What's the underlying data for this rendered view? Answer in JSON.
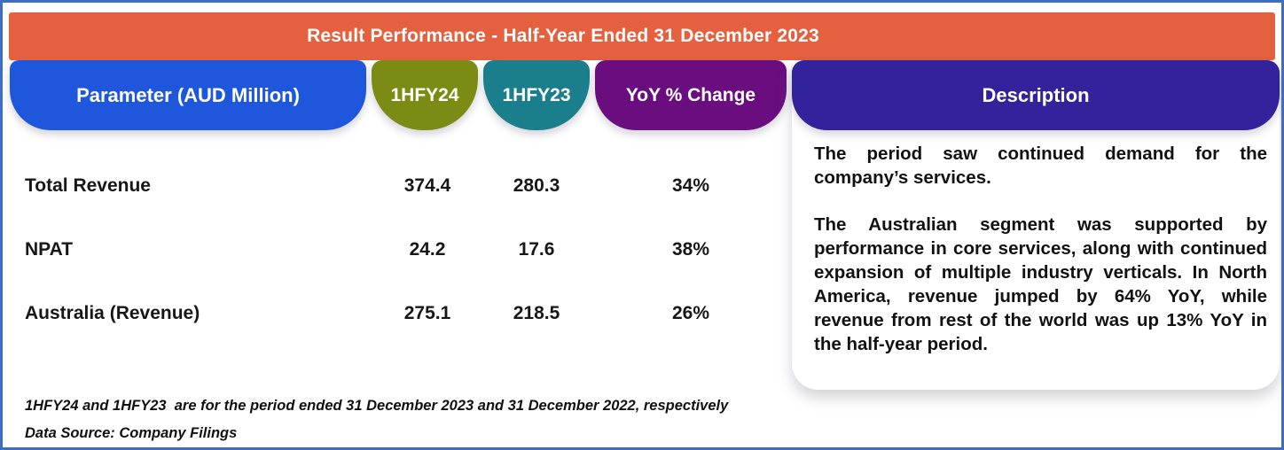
{
  "header": {
    "title": "Result Performance - Half-Year Ended 31 December 2023",
    "background": "#E5603E",
    "text_color": "#FFFFFF"
  },
  "columns": [
    {
      "id": "parameter",
      "label": "Parameter (AUD Million)",
      "color": "#1E56DC"
    },
    {
      "id": "hfy24",
      "label": "1HFY24",
      "color": "#7C8B14"
    },
    {
      "id": "hfy23",
      "label": "1HFY23",
      "color": "#1A7E8D"
    },
    {
      "id": "yoy",
      "label": "YoY % Change",
      "color": "#6A0E7F"
    },
    {
      "id": "description",
      "label": "Description",
      "color": "#32229B"
    }
  ],
  "rows": [
    {
      "parameter": "Total Revenue",
      "hfy24": "374.4",
      "hfy23": "280.3",
      "yoy": "34%"
    },
    {
      "parameter": "NPAT",
      "hfy24": "24.2",
      "hfy23": "17.6",
      "yoy": "38%"
    },
    {
      "parameter": "Australia (Revenue)",
      "hfy24": "275.1",
      "hfy23": "218.5",
      "yoy": "26%"
    }
  ],
  "description": {
    "paragraphs": [
      "The period saw continued demand for the company’s services.",
      "The Australian segment was supported by performance in core services, along with continued expansion of multiple industry verticals. In North America, revenue jumped by 64% YoY, while revenue from rest of the world was up 13% YoY in the half-year period."
    ]
  },
  "footnotes": [
    "1HFY24 and 1HFY23  are for the period ended 31 December 2023 and 31 December 2022, respectively",
    "Data Source: Company Filings"
  ],
  "frame": {
    "border_color": "#3C6EC6",
    "background": "#FFFFFF"
  },
  "chart_data": {
    "type": "table",
    "title": "Result Performance - Half-Year Ended 31 December 2023",
    "columns": [
      "Parameter (AUD Million)",
      "1HFY24",
      "1HFY23",
      "YoY % Change"
    ],
    "rows": [
      [
        "Total Revenue",
        374.4,
        280.3,
        "34%"
      ],
      [
        "NPAT",
        24.2,
        17.6,
        "38%"
      ],
      [
        "Australia (Revenue)",
        275.1,
        218.5,
        "26%"
      ]
    ],
    "notes": "1HFY24 and 1HFY23 are for the period ended 31 December 2023 and 31 December 2022, respectively. Data Source: Company Filings"
  }
}
